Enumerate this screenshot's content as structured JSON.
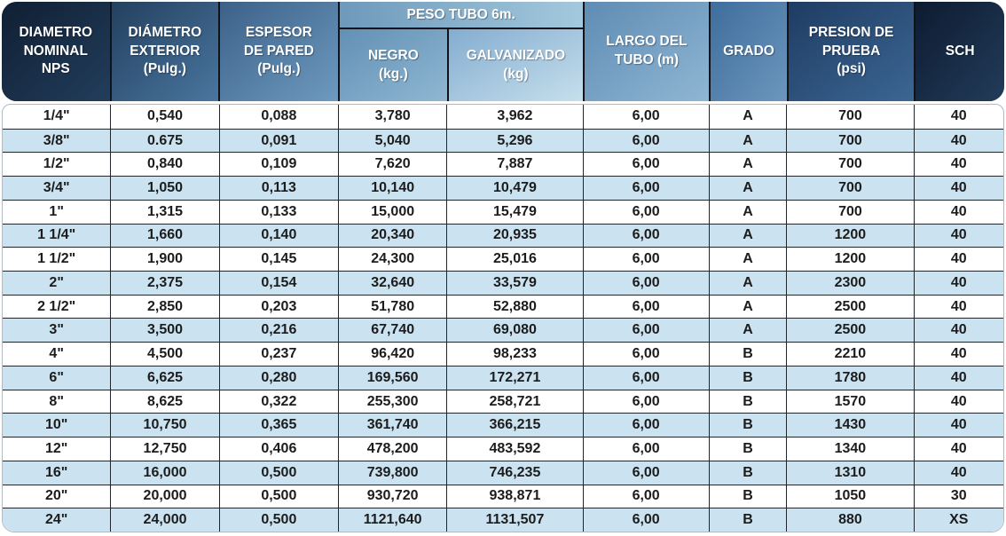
{
  "theme": {
    "colors": {
      "header_dark": "#101f33",
      "header_mid": "#4a76a0",
      "header_light": "#c6dfec",
      "header_text": "#ffffff",
      "row_base": "#ffffff",
      "row_alt": "#cbe3f1",
      "grid_line": "#20262c",
      "body_text": "#1c1c1c"
    }
  },
  "header": {
    "nominal": "DIAMETRO\nNOMINAL\nNPS",
    "exterior": "DIÁMETRO\nEXTERIOR\n(Pulg.)",
    "espesor": "ESPESOR\nDE PARED\n(Pulg.)",
    "peso_group": "PESO TUBO 6m.",
    "negro": "NEGRO\n(kg.)",
    "galvanizado": "GALVANIZADO\n(kg)",
    "largo": "LARGO DEL\nTUBO (m)",
    "grado": "GRADO",
    "presion": "PRESION DE\nPRUEBA\n(psi)",
    "sch": "SCH"
  },
  "chart_data": {
    "type": "table",
    "column_groups": [
      {
        "label": "PESO TUBO 6m.",
        "spans": [
          "NEGRO (kg.)",
          "GALVANIZADO (kg)"
        ]
      }
    ],
    "columns": [
      "DIAMETRO NOMINAL NPS",
      "DIÁMETRO EXTERIOR (Pulg.)",
      "ESPESOR DE PARED (Pulg.)",
      "NEGRO (kg.)",
      "GALVANIZADO (kg)",
      "LARGO DEL TUBO (m)",
      "GRADO",
      "PRESION DE PRUEBA (psi)",
      "SCH"
    ],
    "rows": [
      [
        "1/4\"",
        "0,540",
        "0,088",
        "3,780",
        "3,962",
        "6,00",
        "A",
        "700",
        "40"
      ],
      [
        "3/8\"",
        "0.675",
        "0,091",
        "5,040",
        "5,296",
        "6,00",
        "A",
        "700",
        "40"
      ],
      [
        "1/2\"",
        "0,840",
        "0,109",
        "7,620",
        "7,887",
        "6,00",
        "A",
        "700",
        "40"
      ],
      [
        "3/4\"",
        "1,050",
        "0,113",
        "10,140",
        "10,479",
        "6,00",
        "A",
        "700",
        "40"
      ],
      [
        "1\"",
        "1,315",
        "0,133",
        "15,000",
        "15,479",
        "6,00",
        "A",
        "700",
        "40"
      ],
      [
        "1 1/4\"",
        "1,660",
        "0,140",
        "20,340",
        "20,935",
        "6,00",
        "A",
        "1200",
        "40"
      ],
      [
        "1 1/2\"",
        "1,900",
        "0,145",
        "24,300",
        "25,016",
        "6,00",
        "A",
        "1200",
        "40"
      ],
      [
        "2\"",
        "2,375",
        "0,154",
        "32,640",
        "33,579",
        "6,00",
        "A",
        "2300",
        "40"
      ],
      [
        "2 1/2\"",
        "2,850",
        "0,203",
        "51,780",
        "52,880",
        "6,00",
        "A",
        "2500",
        "40"
      ],
      [
        "3\"",
        "3,500",
        "0,216",
        "67,740",
        "69,080",
        "6,00",
        "A",
        "2500",
        "40"
      ],
      [
        "4\"",
        "4,500",
        "0,237",
        "96,420",
        "98,233",
        "6,00",
        "B",
        "2210",
        "40"
      ],
      [
        "6\"",
        "6,625",
        "0,280",
        "169,560",
        "172,271",
        "6,00",
        "B",
        "1780",
        "40"
      ],
      [
        "8\"",
        "8,625",
        "0,322",
        "255,300",
        "258,721",
        "6,00",
        "B",
        "1570",
        "40"
      ],
      [
        "10\"",
        "10,750",
        "0,365",
        "361,740",
        "366,215",
        "6,00",
        "B",
        "1430",
        "40"
      ],
      [
        "12\"",
        "12,750",
        "0,406",
        "478,200",
        "483,592",
        "6,00",
        "B",
        "1340",
        "40"
      ],
      [
        "16\"",
        "16,000",
        "0,500",
        "739,800",
        "746,235",
        "6,00",
        "B",
        "1310",
        "40"
      ],
      [
        "20\"",
        "20,000",
        "0,500",
        "930,720",
        "938,871",
        "6,00",
        "B",
        "1050",
        "30"
      ],
      [
        "24\"",
        "24,000",
        "0,500",
        "1121,640",
        "1131,507",
        "6,00",
        "B",
        "880",
        "XS"
      ]
    ]
  }
}
